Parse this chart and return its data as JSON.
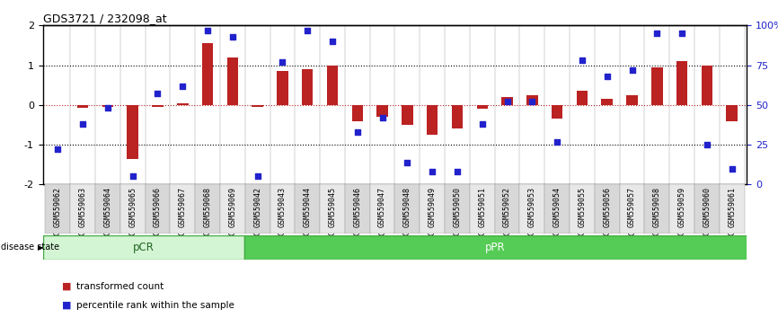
{
  "title": "GDS3721 / 232098_at",
  "samples": [
    "GSM559062",
    "GSM559063",
    "GSM559064",
    "GSM559065",
    "GSM559066",
    "GSM559067",
    "GSM559068",
    "GSM559069",
    "GSM559042",
    "GSM559043",
    "GSM559044",
    "GSM559045",
    "GSM559046",
    "GSM559047",
    "GSM559048",
    "GSM559049",
    "GSM559050",
    "GSM559051",
    "GSM559052",
    "GSM559053",
    "GSM559054",
    "GSM559055",
    "GSM559056",
    "GSM559057",
    "GSM559058",
    "GSM559059",
    "GSM559060",
    "GSM559061"
  ],
  "bar_values": [
    0.0,
    -0.08,
    -0.05,
    -1.35,
    -0.05,
    0.05,
    1.55,
    1.2,
    -0.05,
    0.85,
    0.9,
    1.0,
    -0.4,
    -0.3,
    -0.5,
    -0.75,
    -0.6,
    -0.1,
    0.2,
    0.25,
    -0.35,
    0.35,
    0.15,
    0.25,
    0.95,
    1.1,
    1.0,
    -0.4
  ],
  "percentile_values": [
    22,
    38,
    48,
    5,
    57,
    62,
    97,
    93,
    5,
    77,
    97,
    90,
    33,
    42,
    14,
    8,
    8,
    38,
    52,
    52,
    27,
    78,
    68,
    72,
    95,
    95,
    25,
    10
  ],
  "pCR_count": 8,
  "pPR_count": 20,
  "bar_color": "#bb2222",
  "dot_color": "#2222cc",
  "ylim": [
    -2,
    2
  ],
  "y2lim": [
    0,
    100
  ],
  "y_ticks": [
    -2,
    -1,
    0,
    1,
    2
  ],
  "y2_ticks": [
    0,
    25,
    50,
    75,
    100
  ],
  "y2_ticklabels": [
    "0",
    "25",
    "50",
    "75",
    "100%"
  ],
  "dotted_lines_black": [
    -1,
    1
  ],
  "dotted_line_red": 0,
  "pCR_color_light": "#d4f5d4",
  "pCR_color_dark": "#55cc55",
  "pPR_color": "#55cc55",
  "pCR_label_color": "#226622",
  "pPR_label_color": "#226622",
  "legend_bar_label": "transformed count",
  "legend_dot_label": "percentile rank within the sample",
  "disease_state_label": "disease state"
}
